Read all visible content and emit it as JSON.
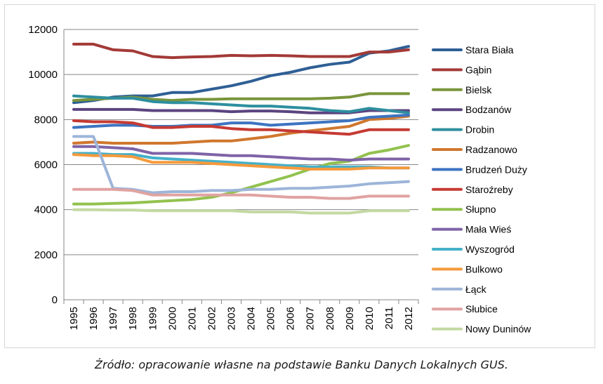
{
  "chart_data": {
    "type": "line",
    "title": "",
    "xlabel": "",
    "ylabel": "",
    "ylim": [
      0,
      12000
    ],
    "yticks": [
      0,
      2000,
      4000,
      6000,
      8000,
      10000,
      12000
    ],
    "grid": "horizontal",
    "legend_position": "right",
    "categories": [
      "1995",
      "1996",
      "1997",
      "1998",
      "1999",
      "2000",
      "2001",
      "2002",
      "2003",
      "2004",
      "2005",
      "2006",
      "2007",
      "2008",
      "2009",
      "2010",
      "2011",
      "2012"
    ],
    "series": [
      {
        "name": "Stara Biała",
        "color": "#2e5f95",
        "values": [
          8750,
          8850,
          9000,
          9050,
          9050,
          9200,
          9200,
          9350,
          9500,
          9700,
          9950,
          10100,
          10300,
          10450,
          10550,
          10950,
          11050,
          11250
        ]
      },
      {
        "name": "Gąbin",
        "color": "#a33a37",
        "values": [
          11350,
          11350,
          11100,
          11050,
          10800,
          10750,
          10780,
          10800,
          10850,
          10830,
          10850,
          10830,
          10800,
          10800,
          10800,
          11000,
          11000,
          11100
        ]
      },
      {
        "name": "Bielsk",
        "color": "#79953b",
        "values": [
          8850,
          8900,
          8950,
          9000,
          8900,
          8850,
          8900,
          8900,
          8920,
          8920,
          8920,
          8920,
          8920,
          8950,
          9000,
          9150,
          9150,
          9150
        ]
      },
      {
        "name": "Bodzanów",
        "color": "#5c4480",
        "values": [
          8450,
          8450,
          8450,
          8450,
          8400,
          8400,
          8400,
          8400,
          8350,
          8380,
          8380,
          8350,
          8300,
          8300,
          8300,
          8400,
          8400,
          8400
        ]
      },
      {
        "name": "Drobin",
        "color": "#2e8f9f",
        "values": [
          9050,
          9000,
          8950,
          8950,
          8800,
          8750,
          8750,
          8700,
          8650,
          8600,
          8600,
          8550,
          8500,
          8400,
          8350,
          8500,
          8400,
          8300
        ]
      },
      {
        "name": "Radzanowo",
        "color": "#d0772e",
        "values": [
          6950,
          7000,
          6950,
          6950,
          6950,
          6950,
          7000,
          7050,
          7050,
          7150,
          7250,
          7400,
          7500,
          7600,
          7700,
          8000,
          8050,
          8150
        ]
      },
      {
        "name": "Brudzeń Duży",
        "color": "#3d74c1",
        "values": [
          7650,
          7700,
          7750,
          7750,
          7700,
          7700,
          7750,
          7750,
          7850,
          7850,
          7750,
          7800,
          7850,
          7900,
          7950,
          8100,
          8150,
          8200
        ]
      },
      {
        "name": "Staroźreby",
        "color": "#c63a33",
        "values": [
          7950,
          7900,
          7900,
          7850,
          7650,
          7650,
          7700,
          7700,
          7600,
          7550,
          7550,
          7500,
          7450,
          7400,
          7350,
          7550,
          7550,
          7550
        ]
      },
      {
        "name": "Słupno",
        "color": "#92c24f",
        "values": [
          4250,
          4250,
          4280,
          4300,
          4350,
          4400,
          4450,
          4550,
          4750,
          5000,
          5250,
          5500,
          5800,
          6050,
          6150,
          6500,
          6650,
          6850
        ]
      },
      {
        "name": "Mała Wieś",
        "color": "#7f63a7",
        "values": [
          6800,
          6800,
          6750,
          6700,
          6500,
          6500,
          6500,
          6450,
          6400,
          6400,
          6350,
          6300,
          6250,
          6250,
          6200,
          6250,
          6250,
          6250
        ]
      },
      {
        "name": "Wyszogród",
        "color": "#45b1c9",
        "values": [
          6500,
          6500,
          6450,
          6450,
          6300,
          6250,
          6200,
          6150,
          6100,
          6050,
          6000,
          5950,
          5900,
          5900,
          5900,
          5900,
          5850,
          5850
        ]
      },
      {
        "name": "Bulkowo",
        "color": "#f59a3d",
        "values": [
          6450,
          6400,
          6400,
          6350,
          6100,
          6100,
          6100,
          6050,
          6000,
          5950,
          5900,
          5850,
          5800,
          5800,
          5800,
          5850,
          5850,
          5850
        ]
      },
      {
        "name": "Łąck",
        "color": "#9db5d9",
        "values": [
          7250,
          7250,
          4950,
          4900,
          4750,
          4800,
          4800,
          4850,
          4850,
          4900,
          4900,
          4950,
          4950,
          5000,
          5050,
          5150,
          5200,
          5250
        ]
      },
      {
        "name": "Słubice",
        "color": "#e0a3a1",
        "values": [
          4900,
          4900,
          4900,
          4850,
          4650,
          4650,
          4650,
          4650,
          4650,
          4650,
          4600,
          4550,
          4550,
          4500,
          4500,
          4600,
          4600,
          4600
        ]
      },
      {
        "name": "Nowy Duninów",
        "color": "#c4d9a2",
        "values": [
          4000,
          4000,
          3980,
          3980,
          3950,
          3950,
          3950,
          3950,
          3950,
          3900,
          3900,
          3900,
          3850,
          3850,
          3850,
          3950,
          3950,
          3950
        ]
      }
    ]
  },
  "caption": "Źródło: opracowanie własne na podstawie Banku Danych Lokalnych GUS."
}
